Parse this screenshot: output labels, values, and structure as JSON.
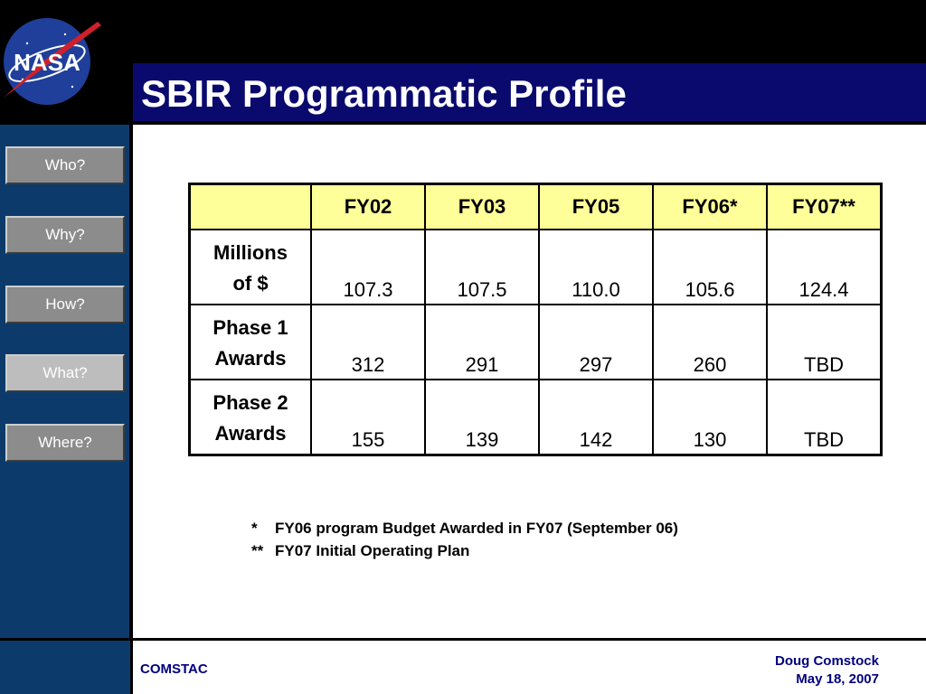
{
  "title": "SBIR Programmatic Profile",
  "logo": {
    "text": "NASA"
  },
  "sidebar": {
    "items": [
      {
        "label": "Who?",
        "active": false
      },
      {
        "label": "Why?",
        "active": false
      },
      {
        "label": "How?",
        "active": false
      },
      {
        "label": "What?",
        "active": true
      },
      {
        "label": "Where?",
        "active": false
      }
    ]
  },
  "table": {
    "headers": [
      "",
      "FY02",
      "FY03",
      "FY05",
      "FY06*",
      "FY07**"
    ],
    "rows": [
      {
        "label_line1": "Millions",
        "label_line2": "of $",
        "values": [
          "107.3",
          "107.5",
          "110.0",
          "105.6",
          "124.4"
        ]
      },
      {
        "label_line1": "Phase 1",
        "label_line2": "Awards",
        "values": [
          "312",
          "291",
          "297",
          "260",
          "TBD"
        ]
      },
      {
        "label_line1": "Phase 2",
        "label_line2": "Awards",
        "values": [
          "155",
          "139",
          "142",
          "130",
          "TBD"
        ]
      }
    ]
  },
  "notes": [
    {
      "mark": "*",
      "text": "FY06 program Budget Awarded in FY07 (September 06)"
    },
    {
      "mark": "**",
      "text": "FY07 Initial Operating Plan"
    }
  ],
  "footer": {
    "org": "COMSTAC",
    "author": "Doug Comstock",
    "date": "May 18, 2007"
  },
  "colors": {
    "title_bar": "#0a0a6e",
    "sidebar": "#0c3b6b",
    "header_fill": "#ffff99",
    "footer_text": "#00007f"
  }
}
